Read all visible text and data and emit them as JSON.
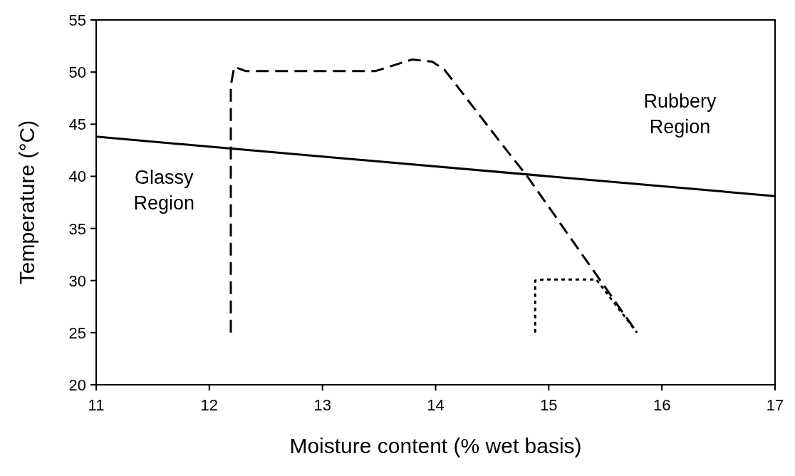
{
  "chart_data": {
    "type": "line",
    "xlabel": "Moisture content (% wet basis)",
    "ylabel": "Temperature (°C)",
    "xlim": [
      11,
      17
    ],
    "xticks": [
      11,
      12,
      13,
      14,
      15,
      16,
      17
    ],
    "ylim": [
      20,
      55
    ],
    "yticks": [
      20,
      25,
      30,
      35,
      40,
      45,
      50,
      55
    ],
    "grid": false,
    "marker": "none",
    "series": [
      {
        "color": "#000000",
        "line_style": "solid",
        "x": [
          11,
          17
        ],
        "values": [
          43.8,
          38.1
        ]
      },
      {
        "color": "#000000",
        "line_style": "dashed",
        "x": [
          12.19,
          12.19,
          12.22,
          12.32,
          13.47,
          13.79,
          13.97,
          14.08,
          14.62,
          14.81,
          15.78
        ],
        "values": [
          25,
          48.7,
          50.5,
          50.1,
          50.1,
          51.2,
          51,
          50.2,
          42.6,
          40,
          25
        ]
      },
      {
        "color": "#000000",
        "line_style": "dotted",
        "x": [
          14.88,
          14.88,
          14.95,
          15.42,
          15.78
        ],
        "values": [
          25,
          30,
          30.1,
          30.1,
          25
        ]
      }
    ],
    "annotations": [
      "Glassy\nRegion",
      "Rubbery\nRegion"
    ]
  }
}
